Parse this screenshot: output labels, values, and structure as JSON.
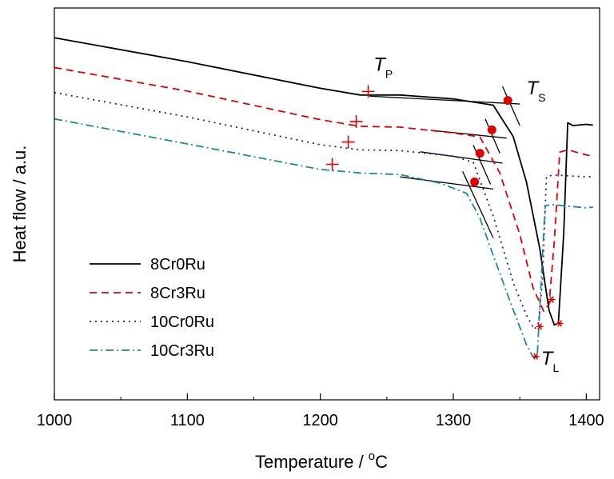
{
  "chart_data": {
    "type": "line",
    "xlabel": "Temperature / °C",
    "xlabel_main": "Temperature / ",
    "xlabel_sup": "o",
    "xlabel_unit": "C",
    "ylabel": "Heat flow / a.u.",
    "xlim": [
      1000,
      1410
    ],
    "ylim": [
      0,
      100
    ],
    "x_ticks": [
      1000,
      1100,
      1200,
      1300,
      1400
    ],
    "grid": false,
    "legend_position": "lower-left",
    "annotations": [
      {
        "main": "T",
        "sub": "P",
        "x": 1240,
        "y": 84
      },
      {
        "main": "T",
        "sub": "S",
        "x": 1355,
        "y": 78
      },
      {
        "main": "T",
        "sub": "L",
        "x": 1366,
        "y": 9
      }
    ],
    "series": [
      {
        "name": "8Cr0Ru",
        "color": "#000000",
        "dash": "solid",
        "x": [
          1000,
          1100,
          1200,
          1230,
          1260,
          1300,
          1330,
          1345,
          1355,
          1365,
          1372,
          1376,
          1379,
          1383,
          1386,
          1390,
          1400,
          1405
        ],
        "y": [
          92.4,
          86.3,
          79.5,
          77.8,
          77.8,
          76.8,
          75.2,
          67.2,
          55.6,
          38.7,
          22.8,
          19.1,
          19.6,
          42.3,
          70.7,
          70.0,
          70.3,
          70.1
        ],
        "markers": [
          {
            "type": "dot",
            "x": 1341,
            "y": 76.4
          },
          {
            "type": "plus",
            "x": 1236,
            "y": 78.7
          },
          {
            "type": "star",
            "x": 1380,
            "y": 19.5
          }
        ]
      },
      {
        "name": "8Cr3Ru",
        "color": "#e00000",
        "dash": "dashed",
        "x": [
          1000,
          1100,
          1200,
          1230,
          1260,
          1300,
          1320,
          1335,
          1350,
          1360,
          1368,
          1372,
          1376,
          1380,
          1386,
          1400,
          1405
        ],
        "y": [
          84.8,
          78.8,
          71.5,
          69.8,
          69.6,
          68.1,
          67.1,
          57.9,
          42.2,
          28.6,
          22.6,
          24.4,
          40.6,
          63.2,
          63.8,
          62.5,
          62.2
        ],
        "markers": [
          {
            "type": "dot",
            "x": 1329,
            "y": 68.9
          },
          {
            "type": "plus",
            "x": 1227,
            "y": 71.0
          },
          {
            "type": "star",
            "x": 1374,
            "y": 25.6
          }
        ]
      },
      {
        "name": "10Cr0Ru",
        "color": "#1a1aa0",
        "dash": "dotted",
        "x": [
          1000,
          1100,
          1200,
          1230,
          1260,
          1300,
          1315,
          1330,
          1345,
          1355,
          1361,
          1364,
          1367,
          1370,
          1375,
          1400,
          1405
        ],
        "y": [
          78.4,
          72.2,
          65.1,
          63.8,
          63.6,
          62.2,
          60.6,
          46.9,
          30.0,
          21.6,
          18.0,
          19.6,
          30.3,
          56.9,
          57.4,
          56.9,
          57.0
        ],
        "markers": [
          {
            "type": "dot",
            "x": 1320,
            "y": 62.9
          },
          {
            "type": "plus",
            "x": 1221,
            "y": 65.8
          },
          {
            "type": "star",
            "x": 1365,
            "y": 18.7
          }
        ]
      },
      {
        "name": "10Cr3Ru",
        "color": "#1a8a9a",
        "dash": "dashdot",
        "x": [
          1000,
          1100,
          1200,
          1230,
          1260,
          1290,
          1310,
          1320,
          1330,
          1345,
          1355,
          1360,
          1363,
          1366,
          1369,
          1375,
          1400,
          1405
        ],
        "y": [
          71.7,
          65.3,
          58.8,
          57.9,
          57.5,
          55.3,
          52.7,
          46.4,
          36.9,
          23.0,
          14.1,
          10.9,
          10.4,
          29.9,
          49.6,
          49.8,
          49.0,
          49.2
        ],
        "markers": [
          {
            "type": "dot",
            "x": 1316,
            "y": 55.6
          },
          {
            "type": "plus",
            "x": 1209,
            "y": 60.1
          },
          {
            "type": "star",
            "x": 1362,
            "y": 11.1
          }
        ]
      }
    ],
    "tangent_lines": [
      {
        "series": "8Cr0Ru",
        "x1": 1237,
        "y1": 77.5,
        "x2": 1350,
        "y2": 75.5
      },
      {
        "series": "8Cr0Ru",
        "x1": 1337,
        "y1": 80.0,
        "x2": 1350,
        "y2": 70.0
      },
      {
        "series": "8Cr3Ru",
        "x1": 1283,
        "y1": 68.8,
        "x2": 1340,
        "y2": 66.8
      },
      {
        "series": "8Cr3Ru",
        "x1": 1324,
        "y1": 71.7,
        "x2": 1335,
        "y2": 62.9
      },
      {
        "series": "10Cr0Ru",
        "x1": 1275,
        "y1": 63.3,
        "x2": 1337,
        "y2": 60.4
      },
      {
        "series": "10Cr0Ru",
        "x1": 1315,
        "y1": 65.0,
        "x2": 1328,
        "y2": 55.0
      },
      {
        "series": "10Cr3Ru",
        "x1": 1260,
        "y1": 56.9,
        "x2": 1330,
        "y2": 53.8
      },
      {
        "series": "10Cr3Ru",
        "x1": 1307,
        "y1": 58.3,
        "x2": 1330,
        "y2": 41.3
      }
    ]
  }
}
